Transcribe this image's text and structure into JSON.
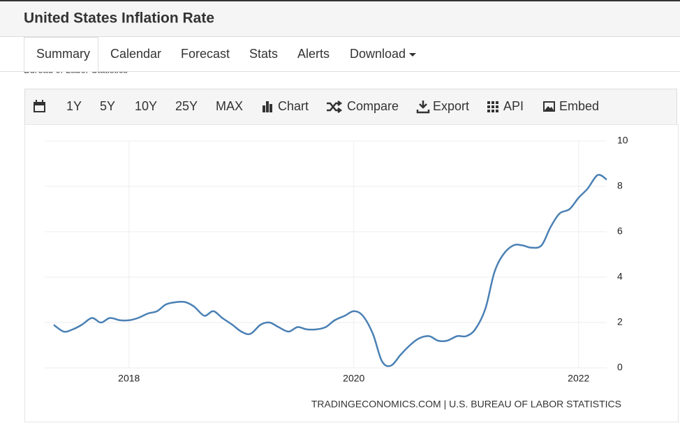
{
  "header": {
    "title": "United States Inflation Rate"
  },
  "nav": [
    "Summary",
    "Calendar",
    "Forecast",
    "Stats",
    "Alerts",
    "Download"
  ],
  "clipped_text": "Bureau of Labor Statistics",
  "toolbar": [
    "1Y",
    "5Y",
    "10Y",
    "25Y",
    "MAX",
    "Chart",
    "Compare",
    "Export",
    "API",
    "Embed"
  ],
  "chart_data": {
    "type": "line",
    "color": "#4a80b4",
    "source": "TRADINGECONOMICS.COM | U.S. BUREAU OF LABOR STATISTICS",
    "x": [
      2017.33,
      2017.42,
      2017.5,
      2017.58,
      2017.67,
      2017.75,
      2017.83,
      2017.92,
      2018,
      2018.08,
      2018.17,
      2018.25,
      2018.33,
      2018.42,
      2018.5,
      2018.58,
      2018.67,
      2018.75,
      2018.83,
      2018.92,
      2019,
      2019.08,
      2019.17,
      2019.25,
      2019.33,
      2019.42,
      2019.5,
      2019.58,
      2019.67,
      2019.75,
      2019.83,
      2019.92,
      2020,
      2020.08,
      2020.17,
      2020.25,
      2020.33,
      2020.42,
      2020.5,
      2020.58,
      2020.67,
      2020.75,
      2020.83,
      2020.92,
      2021,
      2021.08,
      2021.17,
      2021.25,
      2021.33,
      2021.42,
      2021.5,
      2021.58,
      2021.67,
      2021.75,
      2021.83,
      2021.92,
      2022,
      2022.08,
      2022.17,
      2022.25
    ],
    "values": [
      1.9,
      1.6,
      1.7,
      1.9,
      2.2,
      2.0,
      2.2,
      2.1,
      2.1,
      2.2,
      2.4,
      2.5,
      2.8,
      2.9,
      2.9,
      2.7,
      2.3,
      2.5,
      2.2,
      1.9,
      1.6,
      1.5,
      1.9,
      2.0,
      1.8,
      1.6,
      1.8,
      1.7,
      1.7,
      1.8,
      2.1,
      2.3,
      2.5,
      2.3,
      1.5,
      0.3,
      0.1,
      0.6,
      1.0,
      1.3,
      1.4,
      1.2,
      1.2,
      1.4,
      1.4,
      1.7,
      2.6,
      4.2,
      5.0,
      5.4,
      5.4,
      5.3,
      5.4,
      6.2,
      6.8,
      7.0,
      7.5,
      7.9,
      8.5,
      8.3
    ],
    "xlim": [
      2017.25,
      2022.25
    ],
    "xticks": [
      2018,
      2020,
      2022
    ],
    "ylim": [
      0,
      10
    ],
    "yticks": [
      0,
      2,
      4,
      6,
      8,
      10
    ],
    "grid": true
  }
}
